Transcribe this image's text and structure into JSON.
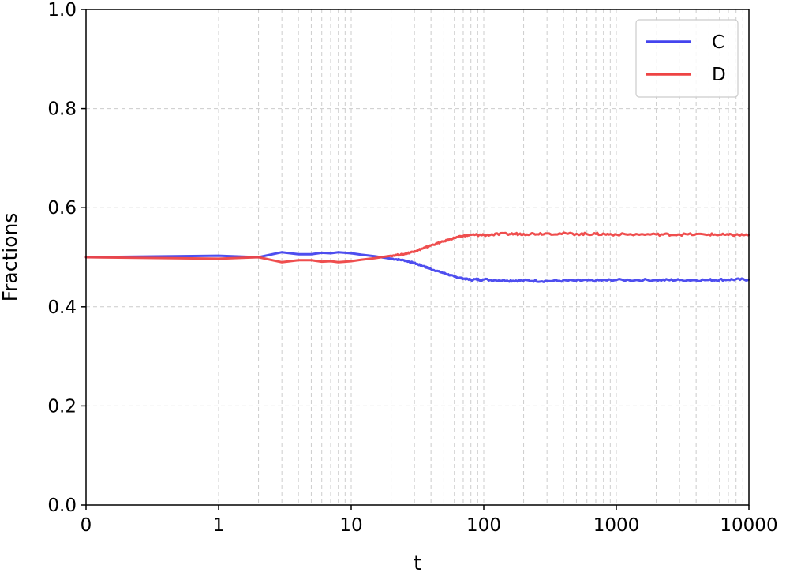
{
  "chart_data": {
    "type": "line",
    "title": "",
    "xlabel": "t",
    "ylabel": "Fractions",
    "x_scale": "symlog",
    "xlim": [
      0,
      10000
    ],
    "ylim": [
      0.0,
      1.0
    ],
    "xticks": [
      {
        "value": 0,
        "label": "0"
      },
      {
        "value": 1,
        "label": "1"
      },
      {
        "value": 10,
        "label": "10"
      },
      {
        "value": 100,
        "label": "100"
      },
      {
        "value": 1000,
        "label": "1000"
      },
      {
        "value": 10000,
        "label": "10000"
      }
    ],
    "yticks": [
      {
        "value": 0.0,
        "label": "0.0"
      },
      {
        "value": 0.2,
        "label": "0.2"
      },
      {
        "value": 0.4,
        "label": "0.4"
      },
      {
        "value": 0.6,
        "label": "0.6"
      },
      {
        "value": 0.8,
        "label": "0.8"
      },
      {
        "value": 1.0,
        "label": "1.0"
      }
    ],
    "grid": true,
    "legend_position": "top-right",
    "series": [
      {
        "name": "C",
        "color": "#4444ee",
        "x": [
          0,
          1,
          2,
          3,
          4,
          5,
          6,
          7,
          8,
          9,
          10,
          12,
          15,
          20,
          25,
          30,
          35,
          40,
          50,
          60,
          70,
          80,
          100,
          150,
          200,
          300,
          500,
          700,
          1000,
          2000,
          3000,
          5000,
          7000,
          10000
        ],
        "y": [
          0.5,
          0.503,
          0.5,
          0.51,
          0.506,
          0.506,
          0.509,
          0.508,
          0.51,
          0.509,
          0.508,
          0.505,
          0.502,
          0.497,
          0.494,
          0.488,
          0.482,
          0.476,
          0.468,
          0.461,
          0.457,
          0.455,
          0.455,
          0.453,
          0.453,
          0.452,
          0.453,
          0.453,
          0.454,
          0.454,
          0.454,
          0.454,
          0.455,
          0.455
        ]
      },
      {
        "name": "D",
        "color": "#ee4444",
        "x": [
          0,
          1,
          2,
          3,
          4,
          5,
          6,
          7,
          8,
          9,
          10,
          12,
          15,
          20,
          25,
          30,
          35,
          40,
          50,
          60,
          70,
          80,
          100,
          150,
          200,
          300,
          500,
          700,
          1000,
          2000,
          3000,
          5000,
          7000,
          10000
        ],
        "y": [
          0.5,
          0.497,
          0.5,
          0.49,
          0.494,
          0.494,
          0.491,
          0.492,
          0.49,
          0.491,
          0.492,
          0.495,
          0.498,
          0.503,
          0.506,
          0.512,
          0.518,
          0.524,
          0.532,
          0.539,
          0.543,
          0.545,
          0.545,
          0.547,
          0.547,
          0.548,
          0.547,
          0.547,
          0.546,
          0.546,
          0.546,
          0.546,
          0.545,
          0.545
        ]
      }
    ]
  }
}
